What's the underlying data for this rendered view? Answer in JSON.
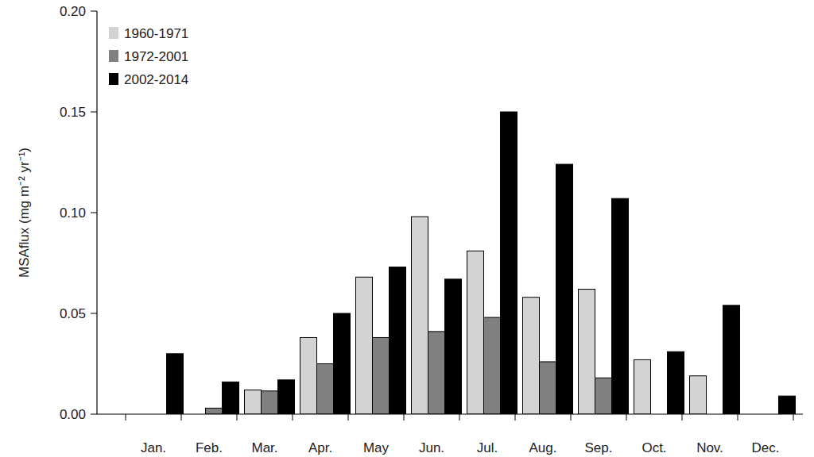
{
  "chart_data": {
    "type": "bar",
    "y_label": "MSAflux (mg m⁻² yr⁻¹)",
    "categories": [
      "Jan.",
      "Feb.",
      "Mar.",
      "Apr.",
      "May",
      "Jun.",
      "Jul.",
      "Aug.",
      "Sep.",
      "Oct.",
      "Nov.",
      "Dec."
    ],
    "series": [
      {
        "name": "1960-1971",
        "color": "#d3d3d3",
        "values": [
          0,
          0,
          0.012,
          0.038,
          0.068,
          0.098,
          0.081,
          0.058,
          0.062,
          0.027,
          0.019,
          0
        ]
      },
      {
        "name": "1972-2001",
        "color": "#808080",
        "values": [
          0,
          0.003,
          0.0115,
          0.025,
          0.038,
          0.041,
          0.048,
          0.026,
          0.018,
          0,
          0,
          0
        ]
      },
      {
        "name": "2002-2014",
        "color": "#000000",
        "values": [
          0.03,
          0.016,
          0.017,
          0.05,
          0.073,
          0.067,
          0.15,
          0.124,
          0.107,
          0.031,
          0.054,
          0.009
        ]
      }
    ],
    "ylim": [
      0,
      0.2
    ],
    "yticks": [
      {
        "value": 0,
        "label": "0.00"
      },
      {
        "value": 0.05,
        "label": "0.05"
      },
      {
        "value": 0.1,
        "label": "0.10"
      },
      {
        "value": 0.15,
        "label": "0.15"
      },
      {
        "value": 0.2,
        "label": "0.20"
      }
    ],
    "legend": "upper left",
    "grid": false
  }
}
